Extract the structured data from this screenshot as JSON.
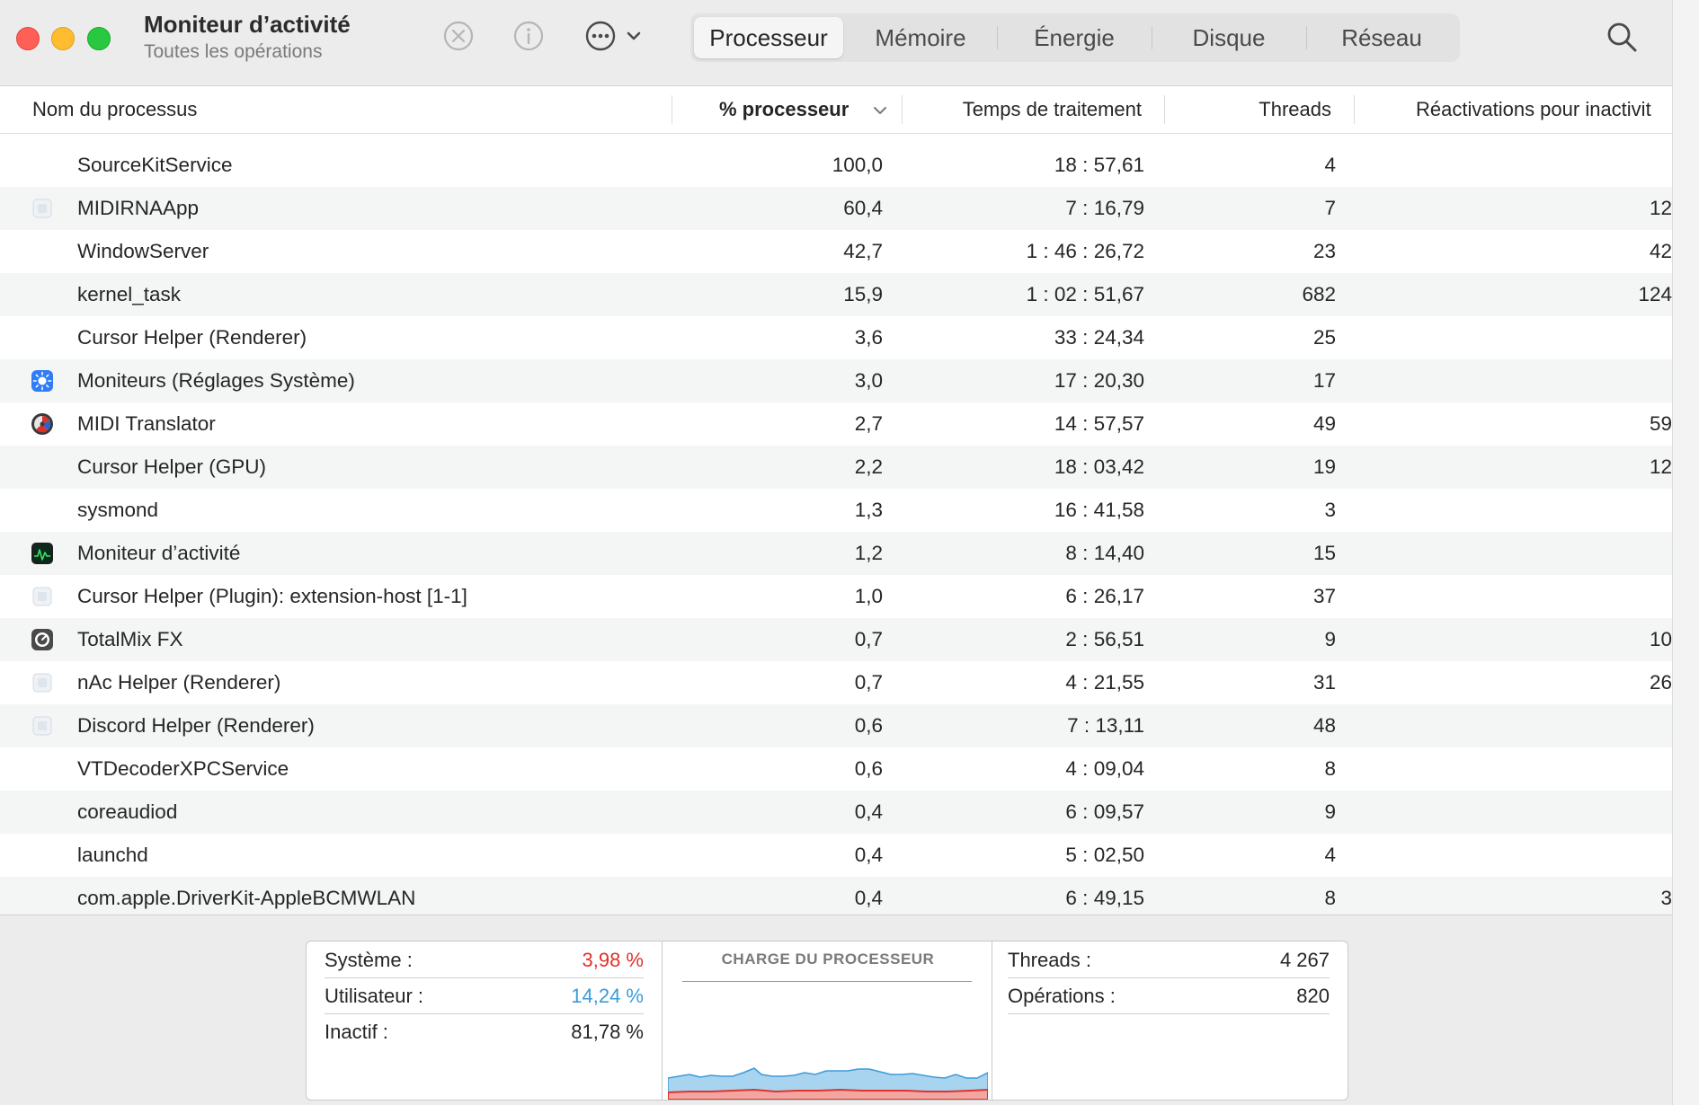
{
  "window": {
    "title": "Moniteur d’activité",
    "subtitle": "Toutes les opérations"
  },
  "toolbar": {
    "icons": [
      "stop-icon",
      "info-icon",
      "ellipsis-icon",
      "chevron-down-icon",
      "search-icon"
    ]
  },
  "tabs": [
    {
      "label": "Processeur",
      "active": true
    },
    {
      "label": "Mémoire",
      "active": false
    },
    {
      "label": "Énergie",
      "active": false
    },
    {
      "label": "Disque",
      "active": false
    },
    {
      "label": "Réseau",
      "active": false
    }
  ],
  "columns": {
    "name": "Nom du processus",
    "cpu": "% processeur",
    "time": "Temps de traitement",
    "threads": "Threads",
    "wakeups": "Réactivations pour inactivit"
  },
  "processes": [
    {
      "icon": "none",
      "name": "SourceKitService",
      "cpu": "100,0",
      "time": "18 : 57,61",
      "threads": "4",
      "wakeups": ""
    },
    {
      "icon": "generic-app-icon",
      "name": "MIDIRNAApp",
      "cpu": "60,4",
      "time": "7 : 16,79",
      "threads": "7",
      "wakeups": "12"
    },
    {
      "icon": "none",
      "name": "WindowServer",
      "cpu": "42,7",
      "time": "1 : 46 : 26,72",
      "threads": "23",
      "wakeups": "42"
    },
    {
      "icon": "none",
      "name": "kernel_task",
      "cpu": "15,9",
      "time": "1 : 02 : 51,67",
      "threads": "682",
      "wakeups": "124"
    },
    {
      "icon": "none",
      "name": "Cursor Helper (Renderer)",
      "cpu": "3,6",
      "time": "33 : 24,34",
      "threads": "25",
      "wakeups": ""
    },
    {
      "icon": "display-settings-icon",
      "name": "Moniteurs (Réglages Système)",
      "cpu": "3,0",
      "time": "17 : 20,30",
      "threads": "17",
      "wakeups": ""
    },
    {
      "icon": "midi-translator-icon",
      "name": "MIDI Translator",
      "cpu": "2,7",
      "time": "14 : 57,57",
      "threads": "49",
      "wakeups": "59"
    },
    {
      "icon": "none",
      "name": "Cursor Helper (GPU)",
      "cpu": "2,2",
      "time": "18 : 03,42",
      "threads": "19",
      "wakeups": "12"
    },
    {
      "icon": "none",
      "name": "sysmond",
      "cpu": "1,3",
      "time": "16 : 41,58",
      "threads": "3",
      "wakeups": ""
    },
    {
      "icon": "activity-monitor-icon",
      "name": "Moniteur d’activité",
      "cpu": "1,2",
      "time": "8 : 14,40",
      "threads": "15",
      "wakeups": ""
    },
    {
      "icon": "generic-app-icon",
      "name": "Cursor Helper (Plugin): extension-host  [1-1]",
      "cpu": "1,0",
      "time": "6 : 26,17",
      "threads": "37",
      "wakeups": ""
    },
    {
      "icon": "totalmix-icon",
      "name": "TotalMix FX",
      "cpu": "0,7",
      "time": "2 : 56,51",
      "threads": "9",
      "wakeups": "10"
    },
    {
      "icon": "generic-app-icon",
      "name": "nAc Helper (Renderer)",
      "cpu": "0,7",
      "time": "4 : 21,55",
      "threads": "31",
      "wakeups": "26"
    },
    {
      "icon": "generic-app-icon",
      "name": "Discord Helper (Renderer)",
      "cpu": "0,6",
      "time": "7 : 13,11",
      "threads": "48",
      "wakeups": ""
    },
    {
      "icon": "none",
      "name": "VTDecoderXPCService",
      "cpu": "0,6",
      "time": "4 : 09,04",
      "threads": "8",
      "wakeups": ""
    },
    {
      "icon": "none",
      "name": "coreaudiod",
      "cpu": "0,4",
      "time": "6 : 09,57",
      "threads": "9",
      "wakeups": ""
    },
    {
      "icon": "none",
      "name": "launchd",
      "cpu": "0,4",
      "time": "5 : 02,50",
      "threads": "4",
      "wakeups": ""
    },
    {
      "icon": "none",
      "name": "com.apple.DriverKit-AppleBCMWLAN",
      "cpu": "0,4",
      "time": "6 : 49,15",
      "threads": "8",
      "wakeups": "3"
    }
  ],
  "footer": {
    "system_label": "Système :",
    "system_value": "3,98 %",
    "user_label": "Utilisateur :",
    "user_value": "14,24 %",
    "idle_label": "Inactif :",
    "idle_value": "81,78 %",
    "chart_title": "CHARGE DU PROCESSEUR",
    "threads_label": "Threads :",
    "threads_value": "4 267",
    "processes_label": "Opérations :",
    "processes_value": "820"
  },
  "colors": {
    "system": "#e0322b",
    "user": "#3b9bd9",
    "user_fill": "#a9d4f0",
    "system_fill": "#f2a6a2"
  }
}
